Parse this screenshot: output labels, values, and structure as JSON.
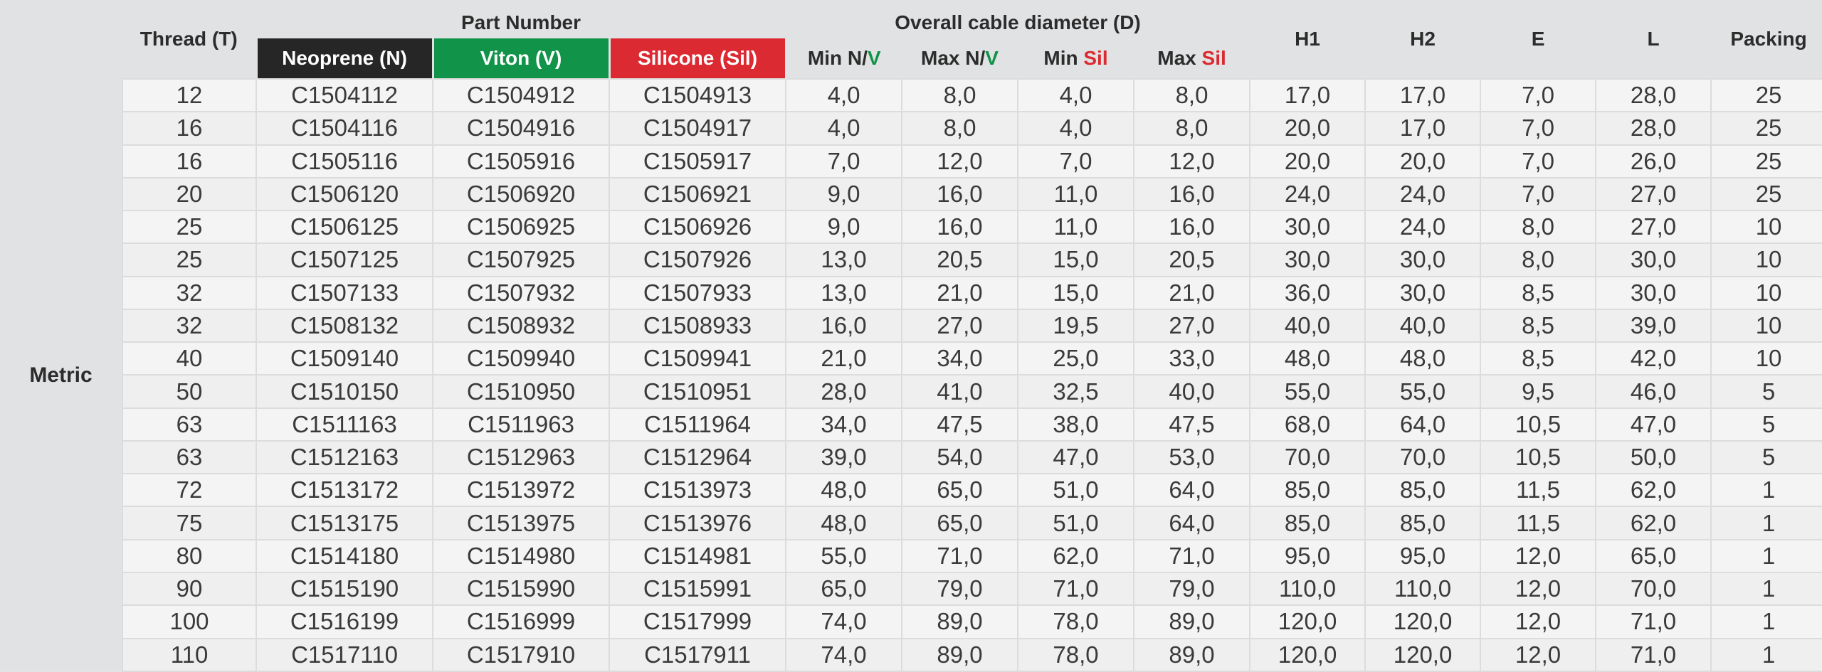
{
  "header": {
    "thread": "Thread (T)",
    "part_number": "Part Number",
    "neoprene": "Neoprene (N)",
    "viton": "Viton (V)",
    "silicone": "Silicone (Sil)",
    "overall_diameter": "Overall cable diameter (D)",
    "min_nv": {
      "prefix": "Min N/",
      "suffix": "V"
    },
    "max_nv": {
      "prefix": "Max N/",
      "suffix": "V"
    },
    "min_sil": {
      "prefix": "Min ",
      "suffix": "Sil"
    },
    "max_sil": {
      "prefix": "Max ",
      "suffix": "Sil"
    },
    "h1": "H1",
    "h2": "H2",
    "e": "E",
    "l": "L",
    "packing": "Packing"
  },
  "group_label": "Metric",
  "colors": {
    "neoprene": "#262626",
    "viton": "#11944a",
    "silicone": "#db2a31",
    "background": "#e1e2e3"
  },
  "rows": [
    [
      "12",
      "C1504112",
      "C1504912",
      "C1504913",
      "4,0",
      "8,0",
      "4,0",
      "8,0",
      "17,0",
      "17,0",
      "7,0",
      "28,0",
      "25"
    ],
    [
      "16",
      "C1504116",
      "C1504916",
      "C1504917",
      "4,0",
      "8,0",
      "4,0",
      "8,0",
      "20,0",
      "17,0",
      "7,0",
      "28,0",
      "25"
    ],
    [
      "16",
      "C1505116",
      "C1505916",
      "C1505917",
      "7,0",
      "12,0",
      "7,0",
      "12,0",
      "20,0",
      "20,0",
      "7,0",
      "26,0",
      "25"
    ],
    [
      "20",
      "C1506120",
      "C1506920",
      "C1506921",
      "9,0",
      "16,0",
      "11,0",
      "16,0",
      "24,0",
      "24,0",
      "7,0",
      "27,0",
      "25"
    ],
    [
      "25",
      "C1506125",
      "C1506925",
      "C1506926",
      "9,0",
      "16,0",
      "11,0",
      "16,0",
      "30,0",
      "24,0",
      "8,0",
      "27,0",
      "10"
    ],
    [
      "25",
      "C1507125",
      "C1507925",
      "C1507926",
      "13,0",
      "20,5",
      "15,0",
      "20,5",
      "30,0",
      "30,0",
      "8,0",
      "30,0",
      "10"
    ],
    [
      "32",
      "C1507133",
      "C1507932",
      "C1507933",
      "13,0",
      "21,0",
      "15,0",
      "21,0",
      "36,0",
      "30,0",
      "8,5",
      "30,0",
      "10"
    ],
    [
      "32",
      "C1508132",
      "C1508932",
      "C1508933",
      "16,0",
      "27,0",
      "19,5",
      "27,0",
      "40,0",
      "40,0",
      "8,5",
      "39,0",
      "10"
    ],
    [
      "40",
      "C1509140",
      "C1509940",
      "C1509941",
      "21,0",
      "34,0",
      "25,0",
      "33,0",
      "48,0",
      "48,0",
      "8,5",
      "42,0",
      "10"
    ],
    [
      "50",
      "C1510150",
      "C1510950",
      "C1510951",
      "28,0",
      "41,0",
      "32,5",
      "40,0",
      "55,0",
      "55,0",
      "9,5",
      "46,0",
      "5"
    ],
    [
      "63",
      "C1511163",
      "C1511963",
      "C1511964",
      "34,0",
      "47,5",
      "38,0",
      "47,5",
      "68,0",
      "64,0",
      "10,5",
      "47,0",
      "5"
    ],
    [
      "63",
      "C1512163",
      "C1512963",
      "C1512964",
      "39,0",
      "54,0",
      "47,0",
      "53,0",
      "70,0",
      "70,0",
      "10,5",
      "50,0",
      "5"
    ],
    [
      "72",
      "C1513172",
      "C1513972",
      "C1513973",
      "48,0",
      "65,0",
      "51,0",
      "64,0",
      "85,0",
      "85,0",
      "11,5",
      "62,0",
      "1"
    ],
    [
      "75",
      "C1513175",
      "C1513975",
      "C1513976",
      "48,0",
      "65,0",
      "51,0",
      "64,0",
      "85,0",
      "85,0",
      "11,5",
      "62,0",
      "1"
    ],
    [
      "80",
      "C1514180",
      "C1514980",
      "C1514981",
      "55,0",
      "71,0",
      "62,0",
      "71,0",
      "95,0",
      "95,0",
      "12,0",
      "65,0",
      "1"
    ],
    [
      "90",
      "C1515190",
      "C1515990",
      "C1515991",
      "65,0",
      "79,0",
      "71,0",
      "79,0",
      "110,0",
      "110,0",
      "12,0",
      "70,0",
      "1"
    ],
    [
      "100",
      "C1516199",
      "C1516999",
      "C1517999",
      "74,0",
      "89,0",
      "78,0",
      "89,0",
      "120,0",
      "120,0",
      "12,0",
      "71,0",
      "1"
    ],
    [
      "110",
      "C1517110",
      "C1517910",
      "C1517911",
      "74,0",
      "89,0",
      "78,0",
      "89,0",
      "120,0",
      "120,0",
      "12,0",
      "71,0",
      "1"
    ]
  ]
}
